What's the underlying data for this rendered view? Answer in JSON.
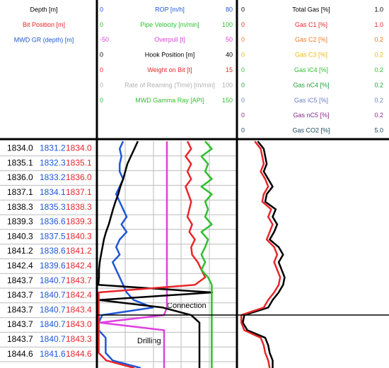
{
  "depth_header": [
    {
      "text": "Depth [m]",
      "color": "#000000"
    },
    {
      "text": "Bit Position [m]",
      "color": "#e8262a"
    },
    {
      "text": "MWD GR (depth) [m]",
      "color": "#1f57d6"
    }
  ],
  "rows": [
    [
      "1834.0",
      "1831.2",
      "1834.0"
    ],
    [
      "1835.1",
      "1832.3",
      "1835.1"
    ],
    [
      "1836.0",
      "1833.2",
      "1836.0"
    ],
    [
      "1837.1",
      "1834.1",
      "1837.1"
    ],
    [
      "1838.3",
      "1835.3",
      "1838.3"
    ],
    [
      "1839.3",
      "1836.6",
      "1839.3"
    ],
    [
      "1840.3",
      "1837.5",
      "1840.3"
    ],
    [
      "1841.2",
      "1838.6",
      "1841.2"
    ],
    [
      "1842.4",
      "1839.6",
      "1842.4"
    ],
    [
      "1843.7",
      "1840.7",
      "1843.7"
    ],
    [
      "1843.7",
      "1840.7",
      "1842.4"
    ],
    [
      "1843.7",
      "1840.7",
      "1843.4"
    ],
    [
      "1843.7",
      "1840.7",
      "1843.0"
    ],
    [
      "1843.7",
      "1840.7",
      "1843.3"
    ],
    [
      "1844.6",
      "1841.6",
      "1844.6"
    ]
  ],
  "row_colors": [
    "#000000",
    "#1f57d6",
    "#e8262a"
  ],
  "tracks": [
    {
      "curves": [
        {
          "name": "ROP [m/h]",
          "color": "#1f57d6",
          "min": 0,
          "max": 80,
          "values": [
            15,
            13,
            14,
            13,
            13,
            15,
            13,
            11,
            13,
            15,
            17,
            14,
            17,
            13,
            11,
            13,
            9,
            11,
            13,
            15,
            17,
            21,
            32,
            3,
            1,
            1,
            5,
            5,
            5,
            9,
            25
          ]
        },
        {
          "name": "Pipe Velocity [m/min]",
          "color": "#2fbf2f",
          "min": 0,
          "max": 100
        },
        {
          "name": "Overpull [t]",
          "color": "#e040e0",
          "min": -50,
          "max": 50,
          "values": [
            0,
            0,
            0,
            0,
            0,
            0,
            0,
            0,
            0,
            0,
            0,
            0,
            0,
            0,
            0,
            0,
            0,
            0,
            0,
            0,
            0,
            0,
            0,
            -2,
            -48,
            -2,
            -2,
            -2,
            -2,
            -2,
            -2
          ]
        },
        {
          "name": "Hook Position [m]",
          "color": "#000000",
          "min": 0,
          "max": 40,
          "values": [
            11.7,
            10.7,
            9.7,
            8.7,
            8.1,
            7.5,
            6.7,
            6.1,
            5.3,
            4.6,
            4.0,
            3.4,
            2.6,
            2.0,
            1.6,
            1.2,
            0.8,
            0.6,
            0.6,
            0.4,
            32.9,
            0.6,
            18.8,
            26.9,
            29.3,
            29.3,
            29.3,
            29.3,
            29.3,
            29.3,
            29.3
          ]
        },
        {
          "name": "Weight on Bit [t]",
          "color": "#e8262a",
          "min": 0,
          "max": 15,
          "values": [
            9.7,
            10.1,
            9.5,
            10.1,
            9.7,
            10.1,
            9.5,
            9.8,
            10.1,
            9.9,
            9.7,
            10.2,
            9.9,
            10.5,
            10.1,
            10.2,
            10.8,
            11.2,
            11.6,
            10.5,
            0.2,
            0.2,
            0.2,
            0.2,
            0.2,
            0.2,
            0.2,
            0.2,
            0.2,
            1.0,
            4.0
          ]
        },
        {
          "name": "Rate of Reaming (Time) [m/min]",
          "color": "#b0b0b0",
          "min": 0,
          "max": 100
        },
        {
          "name": "MWD Gamma Ray [API]",
          "color": "#2fbf2f",
          "min": 0,
          "max": 150,
          "values": [
            116,
            123,
            112,
            119,
            116,
            123,
            112,
            123,
            116,
            119,
            116,
            123,
            112,
            119,
            116,
            112,
            116,
            112,
            119,
            123,
            123,
            123,
            123,
            123,
            123,
            123,
            123,
            123,
            123,
            123,
            123
          ]
        }
      ]
    },
    {
      "curves": [
        {
          "name": "Total Gas [%]",
          "color": "#000000",
          "min": 0,
          "max": {
            "value": 1,
            "label": "1.0"
          },
          "values": [
            0.13,
            0.17,
            0.18,
            0.19,
            0.17,
            0.2,
            0.23,
            0.19,
            0.18,
            0.25,
            0.23,
            0.26,
            0.24,
            0.21,
            0.27,
            0.3,
            0.27,
            0.29,
            0.31,
            0.3,
            0.27,
            0.23,
            0.2,
            0.04,
            0.03,
            0.06,
            0.18,
            0.2,
            0.21,
            0.23,
            0.23
          ]
        },
        {
          "name": "Gas C1 [%]",
          "color": "#e8262a",
          "min": 0,
          "max": {
            "value": 1,
            "label": "1.0"
          },
          "values": [
            0.11,
            0.15,
            0.16,
            0.17,
            0.15,
            0.18,
            0.2,
            0.17,
            0.16,
            0.22,
            0.2,
            0.23,
            0.21,
            0.19,
            0.24,
            0.26,
            0.24,
            0.26,
            0.28,
            0.27,
            0.24,
            0.2,
            0.17,
            0.02,
            0.02,
            0.04,
            0.15,
            0.17,
            0.18,
            0.2,
            0.21
          ]
        },
        {
          "name": "Gas C2 [%]",
          "color": "#f07a20",
          "min": 0,
          "max": 0.2
        },
        {
          "name": "Gas C3 [%]",
          "color": "#f2b90f",
          "min": 0,
          "max": 0.2
        },
        {
          "name": "Gas iC4 [%]",
          "color": "#2fbf2f",
          "min": 0,
          "max": 0.2
        },
        {
          "name": "Gas nC4 [%]",
          "color": "#22a03a",
          "min": 0,
          "max": 0.2
        },
        {
          "name": "Gas iC5 [%]",
          "color": "#6a7fc0",
          "min": 0,
          "max": 0.2
        },
        {
          "name": "Gas nC5 [%]",
          "color": "#8a2a8a",
          "min": 0,
          "max": 0.2
        },
        {
          "name": "Gas CO2 [%]",
          "color": "#1a4a5a",
          "min": 0,
          "max": {
            "value": 5,
            "label": "5.0"
          }
        }
      ]
    }
  ],
  "annotations": [
    "Connection",
    "Drilling"
  ]
}
